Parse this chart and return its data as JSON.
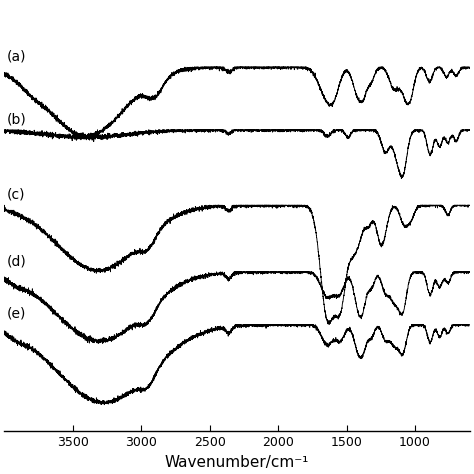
{
  "xlabel": "Wavenumber/cm⁻¹",
  "xlim": [
    4000,
    600
  ],
  "xticks": [
    3500,
    3000,
    2500,
    2000,
    1500,
    1000
  ],
  "xticklabels": [
    "3500",
    "3000",
    "2500",
    "2000",
    "1500",
    "1000"
  ],
  "labels": [
    "(a)",
    "(b)",
    "(c)",
    "(d)",
    "(e)"
  ],
  "background_color": "#ffffff",
  "line_color": "#000000",
  "label_fontsize": 10,
  "xlabel_fontsize": 11,
  "tick_fontsize": 9,
  "offsets": [
    2.05,
    1.55,
    0.95,
    0.42,
    0.0
  ],
  "noise_level": 0.006
}
